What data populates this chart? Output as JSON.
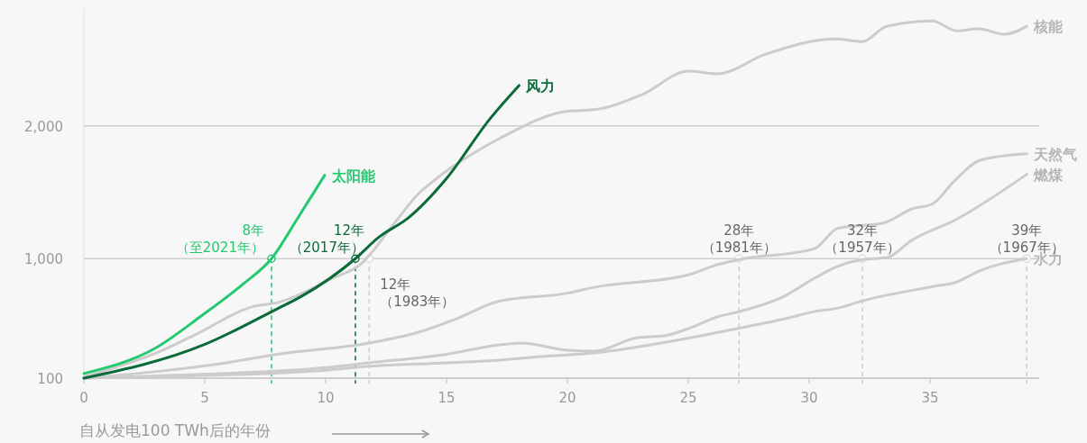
{
  "chart_data": {
    "type": "line",
    "xlabel": "自从发电100 TWh后的年份",
    "xlim": [
      0,
      39.5
    ],
    "xticks": [
      0,
      5,
      10,
      15,
      20,
      25,
      30,
      35
    ],
    "ylim": [
      100,
      2880
    ],
    "yticks": [
      {
        "value": 100,
        "label": "100"
      },
      {
        "value": 1000,
        "label": "1,000"
      },
      {
        "value": 2000,
        "label": "2,000"
      }
    ],
    "grid": "y",
    "legend": false,
    "marker": "none",
    "line_style": "solid",
    "series": [
      {
        "name": "核能",
        "color": "#cccccc",
        "x": [
          0,
          3,
          4.6,
          7,
          8,
          10.2,
          11.5,
          12.8,
          13.9,
          14.2,
          17.2,
          20,
          21.1,
          23.1,
          25,
          26.2,
          28.2,
          31.1,
          32.2,
          33.2,
          35.1,
          36.1,
          37,
          38.1,
          39
        ],
        "values": [
          110,
          290,
          426,
          640,
          669,
          845,
          966,
          1257,
          1500,
          1547,
          1905,
          2110,
          2122,
          2236,
          2412,
          2392,
          2540,
          2655,
          2635,
          2750,
          2790,
          2716,
          2730,
          2690,
          2750
        ]
      },
      {
        "name": "天然气",
        "color": "#cccccc",
        "x": [
          0,
          3,
          5.9,
          8,
          11.8,
          13.7,
          15.5,
          17.1,
          20,
          21.1,
          25,
          26.2,
          27.1,
          30.2,
          31.2,
          33.1,
          34.25,
          35.1,
          36,
          37.1,
          39
        ],
        "values": [
          100,
          150,
          216,
          280,
          365,
          439,
          554,
          676,
          740,
          784,
          878,
          955,
          993,
          1074,
          1230,
          1270,
          1375,
          1412,
          1584,
          1743,
          1790
        ]
      },
      {
        "name": "燃煤",
        "color": "#cccccc",
        "x": [
          0,
          5,
          10,
          11.8,
          15,
          17.2,
          18.1,
          20,
          21.1,
          22.9,
          24,
          25,
          26.2,
          27.1,
          29,
          30.2,
          31.2,
          32.2,
          33.2,
          34.25,
          36.1,
          39
        ],
        "values": [
          100,
          130,
          180,
          216,
          280,
          351,
          365,
          310,
          304,
          405,
          419,
          473,
          561,
          601,
          720,
          851,
          943,
          993,
          1007,
          1139,
          1297,
          1635
        ]
      },
      {
        "name": "水力",
        "color": "#cccccc",
        "x": [
          0,
          5,
          10,
          11.8,
          15,
          17.2,
          18.9,
          21.1,
          25.1,
          27,
          29,
          30.2,
          31.2,
          32.2,
          35.1,
          36.1,
          37,
          39
        ],
        "values": [
          100,
          120,
          160,
          189,
          215,
          236,
          263,
          290,
          405,
          473,
          547,
          601,
          628,
          682,
          790,
          824,
          905,
          1000
        ]
      },
      {
        "name": "风力",
        "color": "#0b6b38",
        "x": [
          0,
          4.96,
          8.06,
          9,
          11.23,
          12.2,
          13.4,
          14.96,
          16.8,
          18
        ],
        "values": [
          100,
          351,
          628,
          716,
          1000,
          1162,
          1304,
          1595,
          2054,
          2304
        ]
      },
      {
        "name": "太阳能",
        "color": "#22c96e",
        "x": [
          0,
          3,
          4.85,
          6.6,
          7.76,
          8.84,
          9.96
        ],
        "values": [
          135,
          331,
          568,
          811,
          1000,
          1304,
          1628
        ]
      }
    ],
    "annotations": [
      {
        "text": "8年（至2021年）",
        "x": 7.76,
        "y": 1000
      },
      {
        "text": "12年（2017年）",
        "x": 11.23,
        "y": 1000
      },
      {
        "text": "12年（1983年）",
        "x": 11.8,
        "y": 1000
      },
      {
        "text": "28年（1981年）",
        "x": 27.1,
        "y": 1000
      },
      {
        "text": "32年（1957年）",
        "x": 32.2,
        "y": 1000
      },
      {
        "text": "39年（1967年）",
        "x": 39,
        "y": 1000
      }
    ]
  }
}
